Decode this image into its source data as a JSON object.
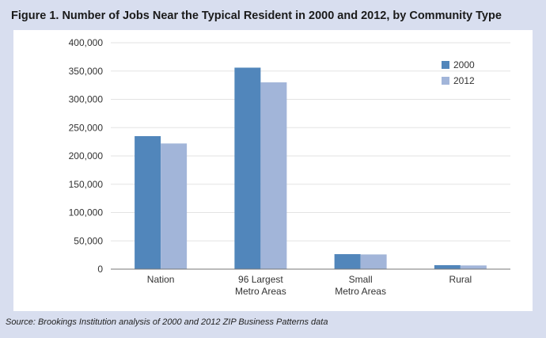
{
  "title": "Figure 1. Number of Jobs Near the Typical Resident in 2000 and 2012, by Community Type",
  "source": "Source: Brookings Institution analysis of 2000 and 2012 ZIP Business Patterns data",
  "chart_data": {
    "type": "bar",
    "title": "Figure 1. Number of Jobs Near the Typical Resident in 2000 and 2012, by Community Type",
    "categories": [
      [
        "Nation"
      ],
      [
        "96 Largest",
        "Metro Areas"
      ],
      [
        "Small",
        "Metro Areas"
      ],
      [
        "Rural"
      ]
    ],
    "series": [
      {
        "name": "2000",
        "color": "#5186bb",
        "values": [
          235000,
          356000,
          26500,
          7000
        ]
      },
      {
        "name": "2012",
        "color": "#a2b5d9",
        "values": [
          222000,
          330000,
          26000,
          6500
        ]
      }
    ],
    "ylim": [
      0,
      400000
    ],
    "yticks": [
      "0",
      "50,000",
      "100,000",
      "150,000",
      "200,000",
      "250,000",
      "300,000",
      "350,000",
      "400,000"
    ],
    "grid": true,
    "legend": "top-right"
  }
}
